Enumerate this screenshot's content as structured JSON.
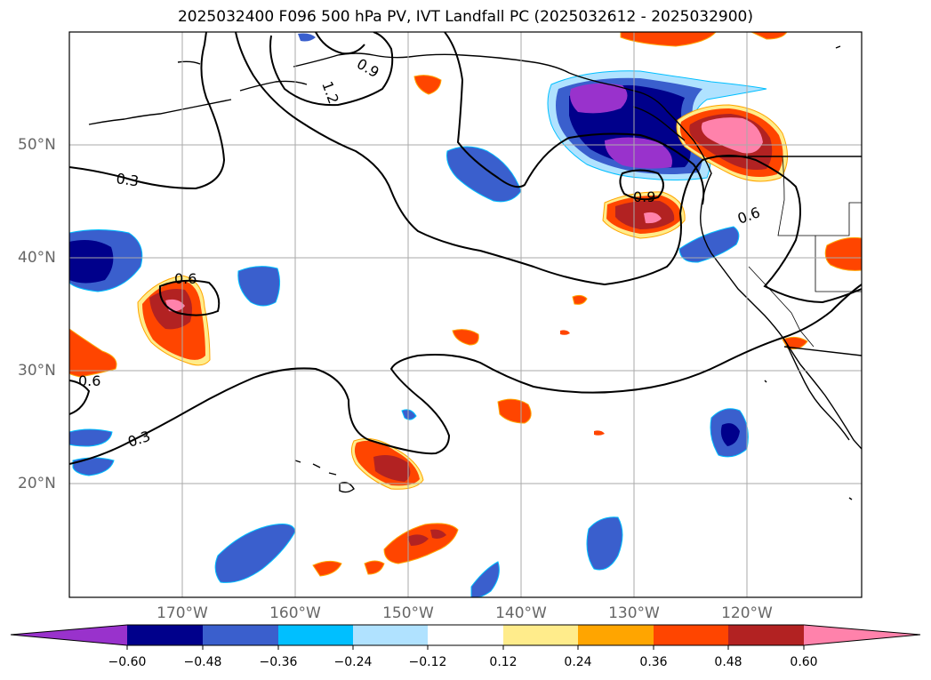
{
  "title": "2025032400 F096 500 hPa PV, IVT Landfall PC (2025032612 - 2025032900)",
  "map": {
    "lat_labels": [
      "50°N",
      "40°N",
      "30°N",
      "20°N"
    ],
    "lon_labels": [
      "170°W",
      "160°W",
      "150°W",
      "140°W",
      "130°W",
      "120°W"
    ],
    "contour_labels": [
      "0.3",
      "0.3",
      "0.6",
      "0.6",
      "0.6",
      "0.9",
      "0.9",
      "1.2"
    ]
  },
  "colorbar": {
    "colors": [
      "#9932CC",
      "#00008B",
      "#3A5FCD",
      "#3A5FCD",
      "#00BFFF",
      "#B0E2FF",
      "#ffffff",
      "#FFEC8B",
      "#FFA500",
      "#FF4500",
      "#B22222",
      "#FF82AB",
      "#FF82AB"
    ],
    "tick_labels": [
      "−0.60",
      "−0.48",
      "−0.36",
      "−0.24",
      "−0.12",
      "0.12",
      "0.24",
      "0.36",
      "0.48",
      "0.60"
    ]
  }
}
